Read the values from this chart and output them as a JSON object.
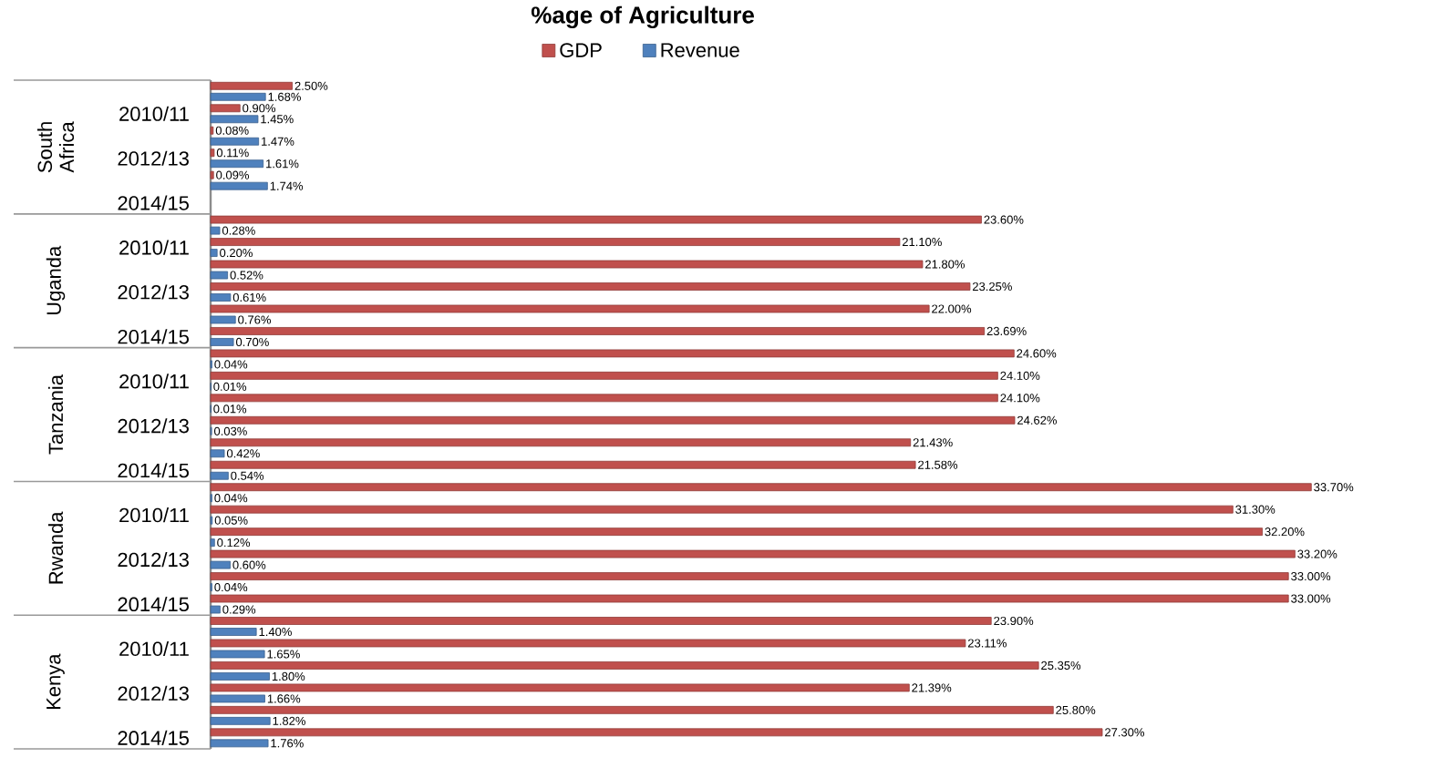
{
  "chart_data": {
    "type": "bar",
    "orientation": "horizontal",
    "title": "%age of Agriculture",
    "categories": [
      null,
      "2010/11",
      null,
      "2012/13",
      null,
      "2014/15",
      null,
      "2010/11",
      null,
      "2012/13",
      null,
      "2014/15",
      null,
      "2010/11",
      null,
      "2012/13",
      null,
      "2014/15",
      null,
      "2010/11",
      null,
      "2012/13",
      null,
      "2014/15",
      null,
      "2010/11",
      null,
      "2012/13",
      null,
      "2014/15"
    ],
    "annotations": [
      "South Africa",
      "Uganda",
      "Tanzania",
      "Rwanda",
      "Kenya"
    ],
    "series": [
      {
        "name": "GDP",
        "color": "#c0504d",
        "values": [
          2.5,
          0.9,
          0.08,
          0.11,
          0.09,
          null,
          23.6,
          21.1,
          21.8,
          23.25,
          22.0,
          23.69,
          24.6,
          24.1,
          24.1,
          24.62,
          21.43,
          21.58,
          33.7,
          31.3,
          32.2,
          33.2,
          33.0,
          33.0,
          23.9,
          23.11,
          25.35,
          21.39,
          25.8,
          27.3
        ],
        "value_labels": [
          "2.50%",
          "0.90%",
          "0.08%",
          "0.11%",
          "0.09%",
          null,
          "23.60%",
          "21.10%",
          "21.80%",
          "23.25%",
          "22.00%",
          "23.69%",
          "24.60%",
          "24.10%",
          "24.10%",
          "24.62%",
          "21.43%",
          "21.58%",
          "33.70%",
          "31.30%",
          "32.20%",
          "33.20%",
          "33.00%",
          "33.00%",
          "23.90%",
          "23.11%",
          "25.35%",
          "21.39%",
          "25.80%",
          "27.30%"
        ]
      },
      {
        "name": "Revenue",
        "color": "#4f81bd",
        "values": [
          1.68,
          1.45,
          1.47,
          1.61,
          1.74,
          null,
          0.28,
          0.2,
          0.52,
          0.61,
          0.76,
          0.7,
          0.04,
          0.01,
          0.01,
          0.03,
          0.42,
          0.54,
          0.04,
          0.05,
          0.12,
          0.6,
          0.04,
          0.29,
          1.4,
          1.65,
          1.8,
          1.66,
          1.82,
          1.76
        ],
        "value_labels": [
          "1.68%",
          "1.45%",
          "1.47%",
          "1.61%",
          "1.74%",
          null,
          "0.28%",
          "0.20%",
          "0.52%",
          "0.61%",
          "0.76%",
          "0.70%",
          "0.04%",
          "0.01%",
          "0.01%",
          "0.03%",
          "0.42%",
          "0.54%",
          "0.04%",
          "0.05%",
          "0.12%",
          "0.60%",
          "0.04%",
          "0.29%",
          "1.40%",
          "1.65%",
          "1.80%",
          "1.66%",
          "1.82%",
          "1.76%"
        ]
      }
    ],
    "legend": "top",
    "tick_labels": "y"
  }
}
